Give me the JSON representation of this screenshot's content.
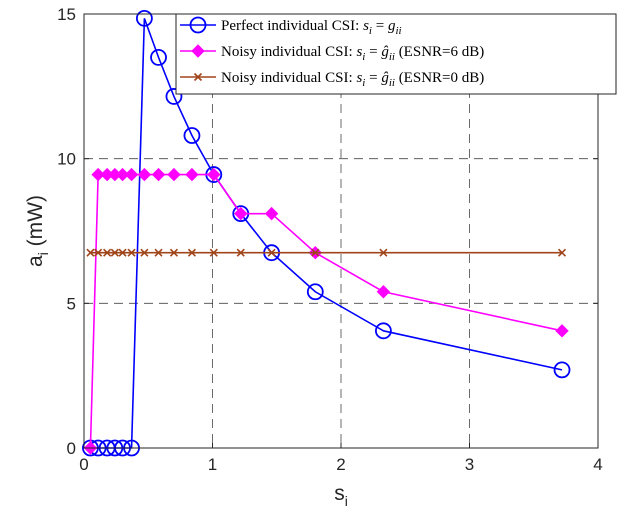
{
  "chart_data": {
    "type": "line",
    "xlabel": "s",
    "xlabel_sub": "i",
    "ylabel": "a",
    "ylabel_sub": "i",
    "ylabel_unit": " (mW)",
    "xlim": [
      0,
      4
    ],
    "ylim": [
      0,
      15
    ],
    "xticks": [
      0,
      1,
      2,
      3,
      4
    ],
    "yticks": [
      0,
      5,
      10,
      15
    ],
    "xtick_labels": [
      "0",
      "1",
      "2",
      "3",
      "4"
    ],
    "ytick_labels": [
      "0",
      "5",
      "10",
      "15"
    ],
    "grid": true,
    "grid_style": "dashed",
    "legend_position": "top-right",
    "series": [
      {
        "name": "Perfect individual CSI: s_i = g_ii",
        "legend_prefix": "Perfect individual CSI: ",
        "legend_math": "s",
        "legend_math_sub": "i",
        "legend_eq": " = ",
        "legend_math2": "g",
        "legend_math2_sub": "ii",
        "legend_suffix": "",
        "color": "#0000ff",
        "marker": "circle",
        "x": [
          0.05,
          0.11,
          0.18,
          0.24,
          0.3,
          0.37,
          0.47,
          0.58,
          0.7,
          0.84,
          1.01,
          1.22,
          1.46,
          1.8,
          2.33,
          3.72
        ],
        "y": [
          0,
          0,
          0,
          0,
          0,
          0,
          14.85,
          13.5,
          12.15,
          10.8,
          9.45,
          8.1,
          6.75,
          5.4,
          4.05,
          2.7
        ]
      },
      {
        "name": "Noisy individual CSI: s_i = ĝ_ii (ESNR=6 dB)",
        "legend_prefix": "Noisy individual CSI: ",
        "legend_math": "s",
        "legend_math_sub": "i",
        "legend_eq": " = ",
        "legend_math2": "ĝ",
        "legend_math2_sub": "ii",
        "legend_suffix": " (ESNR=6 dB)",
        "color": "#ff00ff",
        "marker": "diamond",
        "x": [
          0.05,
          0.11,
          0.18,
          0.24,
          0.3,
          0.37,
          0.47,
          0.58,
          0.7,
          0.84,
          1.01,
          1.22,
          1.46,
          1.8,
          2.33,
          3.72
        ],
        "y": [
          0,
          9.45,
          9.45,
          9.45,
          9.45,
          9.45,
          9.45,
          9.45,
          9.45,
          9.45,
          9.45,
          8.1,
          8.1,
          6.75,
          5.4,
          4.05
        ]
      },
      {
        "name": "Noisy individual CSI: s_i = ĝ_ii (ESNR=0 dB)",
        "legend_prefix": "Noisy individual CSI: ",
        "legend_math": "s",
        "legend_math_sub": "i",
        "legend_eq": " = ",
        "legend_math2": "ĝ",
        "legend_math2_sub": "ii",
        "legend_suffix": " (ESNR=0 dB)",
        "color": "#a0451a",
        "marker": "x",
        "x": [
          0.05,
          0.11,
          0.18,
          0.24,
          0.3,
          0.37,
          0.47,
          0.58,
          0.7,
          0.84,
          1.01,
          1.22,
          1.46,
          1.8,
          2.33,
          3.72
        ],
        "y": [
          6.75,
          6.75,
          6.75,
          6.75,
          6.75,
          6.75,
          6.75,
          6.75,
          6.75,
          6.75,
          6.75,
          6.75,
          6.75,
          6.75,
          6.75,
          6.75
        ]
      }
    ]
  }
}
